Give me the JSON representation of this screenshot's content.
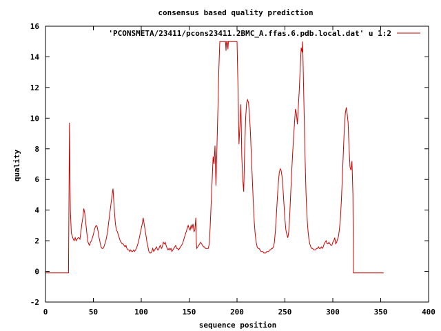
{
  "chart_data": {
    "type": "line",
    "title": "consensus based quality prediction",
    "xlabel": "sequence position",
    "ylabel": "quality",
    "xlim": [
      0,
      400
    ],
    "ylim": [
      -2,
      16
    ],
    "xticks": [
      0,
      50,
      100,
      150,
      200,
      250,
      300,
      350,
      400
    ],
    "yticks": [
      -2,
      0,
      2,
      4,
      6,
      8,
      10,
      12,
      14,
      16
    ],
    "legend_position": "top-right",
    "grid": false,
    "series": [
      {
        "name": "'PCONSMETA/23411/pcons23411.2BMC_A.ffas.6.pdb.local.dat' u 1:2",
        "color": "#cc0000",
        "points": [
          [
            0,
            -0.1
          ],
          [
            24,
            -0.1
          ],
          [
            24.5,
            4.8
          ],
          [
            25,
            9.7
          ],
          [
            25.5,
            6.5
          ],
          [
            26,
            4.0
          ],
          [
            27,
            2.5
          ],
          [
            28,
            2.3
          ],
          [
            29,
            2.1
          ],
          [
            30,
            2.0
          ],
          [
            31,
            2.2
          ],
          [
            32,
            2.0
          ],
          [
            33,
            2.1
          ],
          [
            34,
            2.2
          ],
          [
            35,
            2.2
          ],
          [
            36,
            2.1
          ],
          [
            37,
            2.6
          ],
          [
            38,
            3.1
          ],
          [
            39,
            3.5
          ],
          [
            40,
            4.1
          ],
          [
            41,
            3.8
          ],
          [
            42,
            3.2
          ],
          [
            43,
            2.6
          ],
          [
            44,
            2.0
          ],
          [
            45,
            1.8
          ],
          [
            46,
            1.7
          ],
          [
            47,
            1.9
          ],
          [
            48,
            2.0
          ],
          [
            49,
            2.2
          ],
          [
            50,
            2.4
          ],
          [
            51,
            2.7
          ],
          [
            52,
            2.9
          ],
          [
            53,
            3.0
          ],
          [
            54,
            2.9
          ],
          [
            55,
            2.6
          ],
          [
            56,
            2.2
          ],
          [
            57,
            1.9
          ],
          [
            58,
            1.6
          ],
          [
            59,
            1.5
          ],
          [
            60,
            1.5
          ],
          [
            61,
            1.6
          ],
          [
            62,
            1.8
          ],
          [
            63,
            2.0
          ],
          [
            64,
            2.3
          ],
          [
            65,
            2.7
          ],
          [
            66,
            3.2
          ],
          [
            67,
            3.7
          ],
          [
            68,
            4.2
          ],
          [
            69,
            4.7
          ],
          [
            70,
            5.2
          ],
          [
            70.5,
            5.4
          ],
          [
            71,
            4.9
          ],
          [
            72,
            3.9
          ],
          [
            73,
            3.1
          ],
          [
            74,
            2.7
          ],
          [
            75,
            2.6
          ],
          [
            76,
            2.4
          ],
          [
            77,
            2.2
          ],
          [
            78,
            2.0
          ],
          [
            79,
            1.9
          ],
          [
            80,
            1.8
          ],
          [
            81,
            1.8
          ],
          [
            82,
            1.7
          ],
          [
            83,
            1.6
          ],
          [
            84,
            1.7
          ],
          [
            85,
            1.5
          ],
          [
            86,
            1.4
          ],
          [
            87,
            1.4
          ],
          [
            88,
            1.3
          ],
          [
            89,
            1.4
          ],
          [
            90,
            1.3
          ],
          [
            91,
            1.3
          ],
          [
            92,
            1.4
          ],
          [
            93,
            1.3
          ],
          [
            94,
            1.4
          ],
          [
            95,
            1.5
          ],
          [
            96,
            1.7
          ],
          [
            97,
            1.9
          ],
          [
            98,
            2.2
          ],
          [
            99,
            2.5
          ],
          [
            100,
            2.8
          ],
          [
            101,
            3.1
          ],
          [
            102,
            3.5
          ],
          [
            103,
            3.1
          ],
          [
            104,
            2.7
          ],
          [
            105,
            2.3
          ],
          [
            106,
            1.9
          ],
          [
            107,
            1.6
          ],
          [
            108,
            1.3
          ],
          [
            109,
            1.2
          ],
          [
            110,
            1.2
          ],
          [
            111,
            1.3
          ],
          [
            112,
            1.5
          ],
          [
            113,
            1.3
          ],
          [
            114,
            1.4
          ],
          [
            115,
            1.5
          ],
          [
            116,
            1.6
          ],
          [
            117,
            1.4
          ],
          [
            118,
            1.4
          ],
          [
            119,
            1.6
          ],
          [
            120,
            1.7
          ],
          [
            121,
            1.5
          ],
          [
            122,
            1.6
          ],
          [
            123,
            1.9
          ],
          [
            124,
            1.8
          ],
          [
            125,
            1.9
          ],
          [
            126,
            1.7
          ],
          [
            127,
            1.5
          ],
          [
            128,
            1.4
          ],
          [
            129,
            1.5
          ],
          [
            130,
            1.4
          ],
          [
            131,
            1.5
          ],
          [
            132,
            1.3
          ],
          [
            133,
            1.4
          ],
          [
            134,
            1.5
          ],
          [
            135,
            1.6
          ],
          [
            136,
            1.7
          ],
          [
            137,
            1.5
          ],
          [
            138,
            1.5
          ],
          [
            139,
            1.4
          ],
          [
            140,
            1.5
          ],
          [
            141,
            1.6
          ],
          [
            142,
            1.7
          ],
          [
            143,
            1.8
          ],
          [
            144,
            2.0
          ],
          [
            145,
            2.2
          ],
          [
            146,
            2.4
          ],
          [
            147,
            2.6
          ],
          [
            148,
            2.8
          ],
          [
            149,
            3.0
          ],
          [
            150,
            2.8
          ],
          [
            151,
            2.7
          ],
          [
            152,
            3.0
          ],
          [
            153,
            2.8
          ],
          [
            154,
            3.1
          ],
          [
            155,
            2.6
          ],
          [
            156,
            2.7
          ],
          [
            157,
            3.5
          ],
          [
            157.5,
            1.9
          ],
          [
            158,
            1.5
          ],
          [
            159,
            1.6
          ],
          [
            160,
            1.7
          ],
          [
            161,
            1.8
          ],
          [
            162,
            1.9
          ],
          [
            163,
            1.8
          ],
          [
            164,
            1.7
          ],
          [
            165,
            1.6
          ],
          [
            166,
            1.6
          ],
          [
            167,
            1.5
          ],
          [
            168,
            1.5
          ],
          [
            169,
            1.5
          ],
          [
            170,
            1.5
          ],
          [
            171,
            1.8
          ],
          [
            172,
            3.0
          ],
          [
            173,
            4.5
          ],
          [
            174,
            6.0
          ],
          [
            175,
            7.5
          ],
          [
            176,
            7.0
          ],
          [
            177,
            8.2
          ],
          [
            178,
            5.6
          ],
          [
            179,
            8.0
          ],
          [
            180,
            10.5
          ],
          [
            181,
            13.2
          ],
          [
            182,
            15.0
          ],
          [
            188,
            15.0
          ],
          [
            188.5,
            14.4
          ],
          [
            189,
            15.0
          ],
          [
            190,
            15.0
          ],
          [
            190.5,
            14.5
          ],
          [
            191,
            15.0
          ],
          [
            200,
            15.0
          ],
          [
            201,
            12.0
          ],
          [
            202,
            8.3
          ],
          [
            203,
            9.5
          ],
          [
            204,
            10.9
          ],
          [
            205,
            7.5
          ],
          [
            206,
            6.0
          ],
          [
            207,
            5.2
          ],
          [
            208,
            8.0
          ],
          [
            209,
            10.0
          ],
          [
            210,
            11.0
          ],
          [
            211,
            11.2
          ],
          [
            212,
            11.0
          ],
          [
            213,
            10.2
          ],
          [
            214,
            9.0
          ],
          [
            215,
            7.5
          ],
          [
            216,
            6.0
          ],
          [
            217,
            4.5
          ],
          [
            218,
            3.2
          ],
          [
            219,
            2.4
          ],
          [
            220,
            1.9
          ],
          [
            221,
            1.6
          ],
          [
            222,
            1.5
          ],
          [
            223,
            1.5
          ],
          [
            224,
            1.4
          ],
          [
            225,
            1.3
          ],
          [
            226,
            1.3
          ],
          [
            227,
            1.3
          ],
          [
            228,
            1.2
          ],
          [
            229,
            1.2
          ],
          [
            230,
            1.2
          ],
          [
            231,
            1.3
          ],
          [
            232,
            1.3
          ],
          [
            233,
            1.3
          ],
          [
            234,
            1.4
          ],
          [
            235,
            1.4
          ],
          [
            236,
            1.5
          ],
          [
            237,
            1.5
          ],
          [
            238,
            1.6
          ],
          [
            239,
            1.9
          ],
          [
            240,
            2.6
          ],
          [
            241,
            3.6
          ],
          [
            242,
            4.7
          ],
          [
            243,
            5.7
          ],
          [
            244,
            6.4
          ],
          [
            245,
            6.7
          ],
          [
            246,
            6.6
          ],
          [
            247,
            6.2
          ],
          [
            248,
            5.4
          ],
          [
            249,
            4.4
          ],
          [
            250,
            3.4
          ],
          [
            251,
            2.7
          ],
          [
            252,
            2.4
          ],
          [
            253,
            2.2
          ],
          [
            254,
            2.6
          ],
          [
            255,
            3.6
          ],
          [
            256,
            5.0
          ],
          [
            257,
            6.4
          ],
          [
            258,
            7.6
          ],
          [
            259,
            8.7
          ],
          [
            260,
            9.7
          ],
          [
            261,
            10.6
          ],
          [
            262,
            10.3
          ],
          [
            263,
            9.6
          ],
          [
            264,
            10.8
          ],
          [
            265,
            11.8
          ],
          [
            266,
            13.3
          ],
          [
            267,
            14.6
          ],
          [
            268,
            14.3
          ],
          [
            268.5,
            15.0
          ],
          [
            269,
            13.5
          ],
          [
            270,
            10.5
          ],
          [
            271,
            7.5
          ],
          [
            272,
            5.1
          ],
          [
            273,
            3.6
          ],
          [
            274,
            2.7
          ],
          [
            275,
            2.1
          ],
          [
            276,
            1.8
          ],
          [
            277,
            1.6
          ],
          [
            278,
            1.5
          ],
          [
            279,
            1.5
          ],
          [
            280,
            1.4
          ],
          [
            281,
            1.4
          ],
          [
            282,
            1.4
          ],
          [
            283,
            1.5
          ],
          [
            284,
            1.5
          ],
          [
            285,
            1.6
          ],
          [
            286,
            1.5
          ],
          [
            287,
            1.5
          ],
          [
            288,
            1.6
          ],
          [
            289,
            1.5
          ],
          [
            290,
            1.6
          ],
          [
            291,
            1.8
          ],
          [
            292,
            1.9
          ],
          [
            293,
            2.0
          ],
          [
            294,
            1.8
          ],
          [
            295,
            1.8
          ],
          [
            296,
            1.9
          ],
          [
            297,
            1.8
          ],
          [
            298,
            1.7
          ],
          [
            299,
            1.7
          ],
          [
            300,
            1.9
          ],
          [
            301,
            2.0
          ],
          [
            302,
            2.2
          ],
          [
            303,
            1.8
          ],
          [
            304,
            1.9
          ],
          [
            305,
            2.1
          ],
          [
            306,
            2.3
          ],
          [
            307,
            2.8
          ],
          [
            308,
            3.5
          ],
          [
            309,
            4.7
          ],
          [
            310,
            6.2
          ],
          [
            311,
            7.8
          ],
          [
            312,
            9.3
          ],
          [
            313,
            10.3
          ],
          [
            314,
            10.7
          ],
          [
            315,
            10.3
          ],
          [
            316,
            9.7
          ],
          [
            317,
            8.0
          ],
          [
            318,
            6.8
          ],
          [
            319,
            6.6
          ],
          [
            320,
            7.2
          ],
          [
            321,
            5.0
          ],
          [
            321.5,
            -0.1
          ],
          [
            353,
            -0.1
          ]
        ]
      }
    ]
  }
}
